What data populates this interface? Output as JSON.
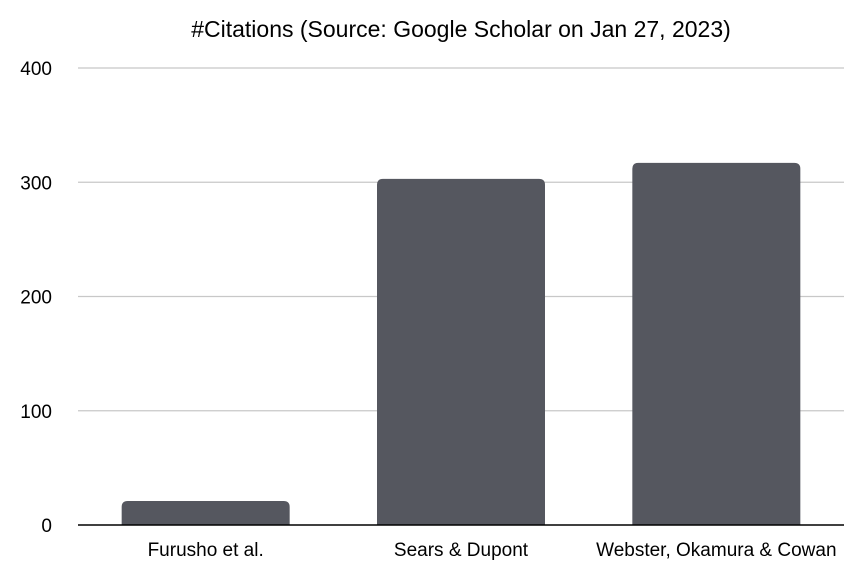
{
  "chart_data": {
    "type": "bar",
    "title": "#Citations (Source: Google Scholar on Jan 27, 2023)",
    "xlabel": "",
    "ylabel": "",
    "categories": [
      "Furusho et al.",
      "Sears & Dupont",
      "Webster, Okamura & Cowan"
    ],
    "values": [
      21,
      303,
      317
    ],
    "ylim": [
      0,
      400
    ],
    "yticks": [
      0,
      100,
      200,
      300,
      400
    ],
    "grid": true,
    "legend": "none",
    "bar_color": "#55575f",
    "grid_color": "#c8c8c8",
    "axis_color": "#000000"
  }
}
